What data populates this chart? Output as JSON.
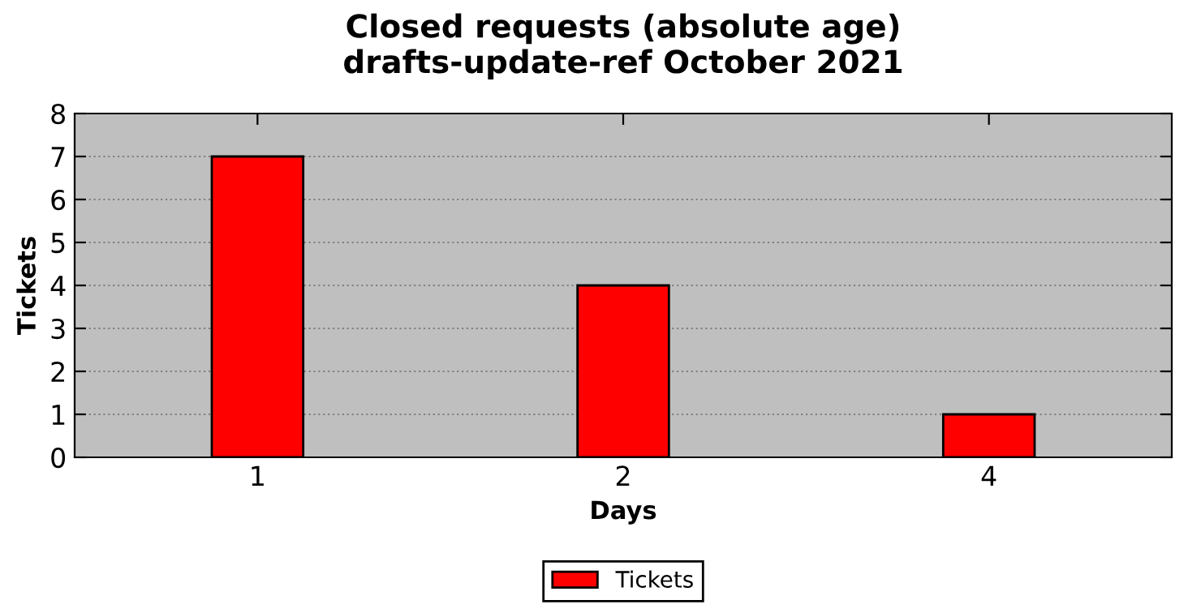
{
  "chart_data": {
    "type": "bar",
    "title": "Closed requests (absolute age)\ndrafts-update-ref October 2021",
    "xlabel": "Days",
    "ylabel": "Tickets",
    "categories": [
      "1",
      "2",
      "4"
    ],
    "series": [
      {
        "name": "Tickets",
        "color": "#ff0000",
        "values": [
          7,
          4,
          1
        ]
      }
    ],
    "ylim": [
      0,
      8
    ],
    "yticks": [
      0,
      1,
      2,
      3,
      4,
      5,
      6,
      7,
      8
    ],
    "grid": "y",
    "legend": "bottom"
  }
}
